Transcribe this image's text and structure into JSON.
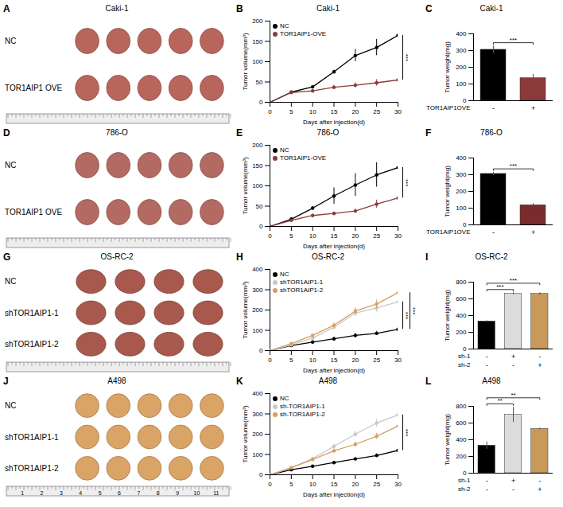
{
  "photos": [
    {
      "letter": "A",
      "title": "Caki-1",
      "color": "#b8665c",
      "rows": [
        {
          "label": "NC",
          "tumors": 5
        },
        {
          "label": "TOR1AIP1 OVE",
          "tumors": 5
        }
      ]
    },
    {
      "letter": "D",
      "title": "786-O",
      "color": "#b36a62",
      "rows": [
        {
          "label": "NC",
          "tumors": 5
        },
        {
          "label": "TOR1AIP1 OVE",
          "tumors": 5
        }
      ]
    },
    {
      "letter": "G",
      "title": "OS-RC-2",
      "color": "#a8584c",
      "rows": [
        {
          "label": "NC",
          "tumors": 4
        },
        {
          "label": "shTOR1AIP1-1",
          "tumors": 4
        },
        {
          "label": "shTOR1AIP1-2",
          "tumors": 4
        }
      ]
    },
    {
      "letter": "J",
      "title": "A498",
      "color": "#d9a466",
      "rows": [
        {
          "label": "NC",
          "tumors": 5
        },
        {
          "label": "shTOR1AIP1-1",
          "tumors": 5
        },
        {
          "label": "shTOR1AIP1-2",
          "tumors": 5
        }
      ],
      "ruler_labels": [
        "1",
        "2",
        "3",
        "4",
        "5",
        "6",
        "7",
        "8",
        "9",
        "10",
        "11"
      ]
    }
  ],
  "chart_data": [
    {
      "letter": "B",
      "type": "line",
      "title": "Caki-1",
      "x_label": "Days after injection(d)",
      "y_label": "Tumor volume(mm³)",
      "x": [
        0,
        5,
        10,
        15,
        20,
        25,
        30
      ],
      "xlim": [
        0,
        30
      ],
      "xticks": [
        0,
        5,
        10,
        15,
        20,
        25,
        30
      ],
      "ylim": [
        0,
        200
      ],
      "yticks": [
        0,
        50,
        100,
        150,
        200
      ],
      "legend": "top-left",
      "marker": "circle",
      "series": [
        {
          "name": "NC",
          "color": "#000000",
          "values": [
            0,
            25,
            38,
            75,
            115,
            135,
            165
          ],
          "errors": [
            0,
            2,
            3,
            4,
            15,
            20,
            25
          ]
        },
        {
          "name": "TOR1AIP1-OVE",
          "color": "#8b3a3a",
          "values": [
            0,
            24,
            28,
            37,
            42,
            48,
            55
          ],
          "errors": [
            0,
            2,
            4,
            5,
            6,
            8,
            8
          ]
        }
      ],
      "significance": [
        {
          "between": [
            "NC",
            "TOR1AIP1-OVE"
          ],
          "label": "***"
        }
      ]
    },
    {
      "letter": "C",
      "type": "bar",
      "title": "Caki-1",
      "y_label": "Tumor weight(mg)",
      "categories": [
        null,
        null
      ],
      "values": [
        305,
        135
      ],
      "errors": [
        22,
        22
      ],
      "colors": [
        "#000000",
        "#8b3a3a"
      ],
      "ylim": [
        0,
        400
      ],
      "yticks": [
        0,
        100,
        200,
        300,
        400
      ],
      "x_rows": [
        {
          "label": "TOR1AIP1OVE",
          "marks": [
            "-",
            "+"
          ]
        }
      ],
      "significance": [
        {
          "pair": [
            0,
            1
          ],
          "label": "***"
        }
      ]
    },
    {
      "letter": "E",
      "type": "line",
      "title": "786-O",
      "x_label": "Days after injection(d)",
      "y_label": "Tumor volume(mm³)",
      "x": [
        0,
        5,
        10,
        15,
        20,
        25,
        30
      ],
      "xlim": [
        0,
        30
      ],
      "xticks": [
        0,
        5,
        10,
        15,
        20,
        25,
        30
      ],
      "ylim": [
        0,
        200
      ],
      "yticks": [
        0,
        50,
        100,
        150,
        200
      ],
      "legend": "top-left",
      "marker": "circle",
      "series": [
        {
          "name": "NC",
          "color": "#000000",
          "values": [
            0,
            18,
            45,
            75,
            102,
            127,
            145
          ],
          "errors": [
            0,
            2,
            4,
            20,
            28,
            30,
            8
          ]
        },
        {
          "name": "TOR1AIP1-OVE",
          "color": "#8b3a3a",
          "values": [
            0,
            15,
            27,
            32,
            38,
            55,
            70
          ],
          "errors": [
            0,
            2,
            3,
            4,
            5,
            10,
            12
          ]
        }
      ],
      "significance": [
        {
          "between": [
            "NC",
            "TOR1AIP1-OVE"
          ],
          "label": "***"
        }
      ]
    },
    {
      "letter": "F",
      "type": "bar",
      "title": "786-O",
      "y_label": "Tumor weight(mg)",
      "categories": [
        null,
        null
      ],
      "values": [
        305,
        118
      ],
      "errors": [
        10,
        10
      ],
      "colors": [
        "#000000",
        "#7a2c2c"
      ],
      "ylim": [
        0,
        400
      ],
      "yticks": [
        0,
        100,
        200,
        300,
        400
      ],
      "x_rows": [
        {
          "label": "TOR1AIP1OVE",
          "marks": [
            "-",
            "+"
          ]
        }
      ],
      "significance": [
        {
          "pair": [
            0,
            1
          ],
          "label": "***"
        }
      ]
    },
    {
      "letter": "H",
      "type": "line",
      "title": "OS-RC-2",
      "x_label": "Days after injection(d)",
      "y_label": "Tumor volume(mm³)",
      "x": [
        0,
        5,
        10,
        15,
        20,
        25,
        30
      ],
      "xlim": [
        0,
        30
      ],
      "xticks": [
        0,
        5,
        10,
        15,
        20,
        25,
        30
      ],
      "ylim": [
        0,
        400
      ],
      "yticks": [
        0,
        100,
        200,
        300,
        400
      ],
      "legend": "top-left",
      "marker": "circle",
      "series": [
        {
          "name": "NC",
          "color": "#000000",
          "values": [
            0,
            25,
            42,
            58,
            75,
            85,
            105
          ],
          "errors": [
            0,
            3,
            5,
            8,
            10,
            10,
            12
          ]
        },
        {
          "name": "shTOR1AIP1-1",
          "color": "#c8c8c8",
          "values": [
            0,
            28,
            62,
            115,
            185,
            210,
            240
          ],
          "errors": [
            0,
            3,
            6,
            10,
            20,
            20,
            15
          ]
        },
        {
          "name": "shTOR1AIP1-2",
          "color": "#d4a060",
          "values": [
            0,
            35,
            75,
            125,
            195,
            230,
            285
          ],
          "errors": [
            0,
            3,
            6,
            12,
            15,
            20,
            30
          ]
        }
      ],
      "significance": [
        {
          "between": [
            "NC",
            "shTOR1AIP1-1"
          ],
          "label": "***"
        },
        {
          "between": [
            "NC",
            "shTOR1AIP1-2"
          ],
          "label": "***"
        }
      ]
    },
    {
      "letter": "I",
      "type": "bar",
      "title": "OS-RC-2",
      "y_label": "Tumor weight(mg)",
      "categories": [
        null,
        null,
        null
      ],
      "values": [
        330,
        660,
        660
      ],
      "errors": [
        10,
        12,
        15
      ],
      "colors": [
        "#000000",
        "#dcdcdc",
        "#c79a5a"
      ],
      "ylim": [
        0,
        800
      ],
      "yticks": [
        0,
        200,
        400,
        600,
        800
      ],
      "x_rows": [
        {
          "label": "sh-1",
          "marks": [
            "-",
            "+",
            "-"
          ]
        },
        {
          "label": "sh-2",
          "marks": [
            "-",
            "-",
            "+"
          ]
        }
      ],
      "significance": [
        {
          "pair": [
            0,
            1
          ],
          "label": "***"
        },
        {
          "pair": [
            0,
            2
          ],
          "label": "***"
        }
      ]
    },
    {
      "letter": "K",
      "type": "line",
      "title": "A498",
      "x_label": "Days after injection(d)",
      "y_label": "Tumor volume(mm³)",
      "x": [
        0,
        5,
        10,
        15,
        20,
        25,
        30
      ],
      "xlim": [
        0,
        30
      ],
      "xticks": [
        0,
        5,
        10,
        15,
        20,
        25,
        30
      ],
      "ylim": [
        0,
        400
      ],
      "yticks": [
        0,
        100,
        200,
        300,
        400
      ],
      "legend": "top-left",
      "marker": "circle",
      "series": [
        {
          "name": "NC",
          "color": "#000000",
          "values": [
            0,
            25,
            42,
            60,
            78,
            95,
            120
          ],
          "errors": [
            0,
            2,
            4,
            5,
            6,
            8,
            12
          ]
        },
        {
          "name": "sh-TOR1AIP1-1",
          "color": "#c8c8c8",
          "values": [
            0,
            35,
            80,
            140,
            200,
            255,
            295
          ],
          "errors": [
            0,
            3,
            5,
            10,
            15,
            20,
            30
          ]
        },
        {
          "name": "sh-TOR1AIP1-2",
          "color": "#d4a060",
          "values": [
            0,
            35,
            75,
            118,
            150,
            190,
            240
          ],
          "errors": [
            0,
            3,
            5,
            10,
            12,
            15,
            20
          ]
        }
      ],
      "significance": [
        {
          "between": [
            "NC",
            "sh-TOR1AIP1-1"
          ],
          "label": "***"
        }
      ]
    },
    {
      "letter": "L",
      "type": "bar",
      "title": "A498",
      "y_label": "Tumor weight(mg)",
      "categories": [
        null,
        null,
        null
      ],
      "values": [
        330,
        700,
        530
      ],
      "errors": [
        45,
        90,
        12
      ],
      "colors": [
        "#000000",
        "#dcdcdc",
        "#c79a5a"
      ],
      "ylim": [
        0,
        800
      ],
      "yticks": [
        0,
        200,
        400,
        600,
        800
      ],
      "x_rows": [
        {
          "label": "sh-1",
          "marks": [
            "-",
            "+",
            "-"
          ]
        },
        {
          "label": "sh-2",
          "marks": [
            "-",
            "-",
            "+"
          ]
        }
      ],
      "significance": [
        {
          "pair": [
            0,
            1
          ],
          "label": "**"
        },
        {
          "pair": [
            0,
            2
          ],
          "label": "**"
        }
      ]
    }
  ]
}
